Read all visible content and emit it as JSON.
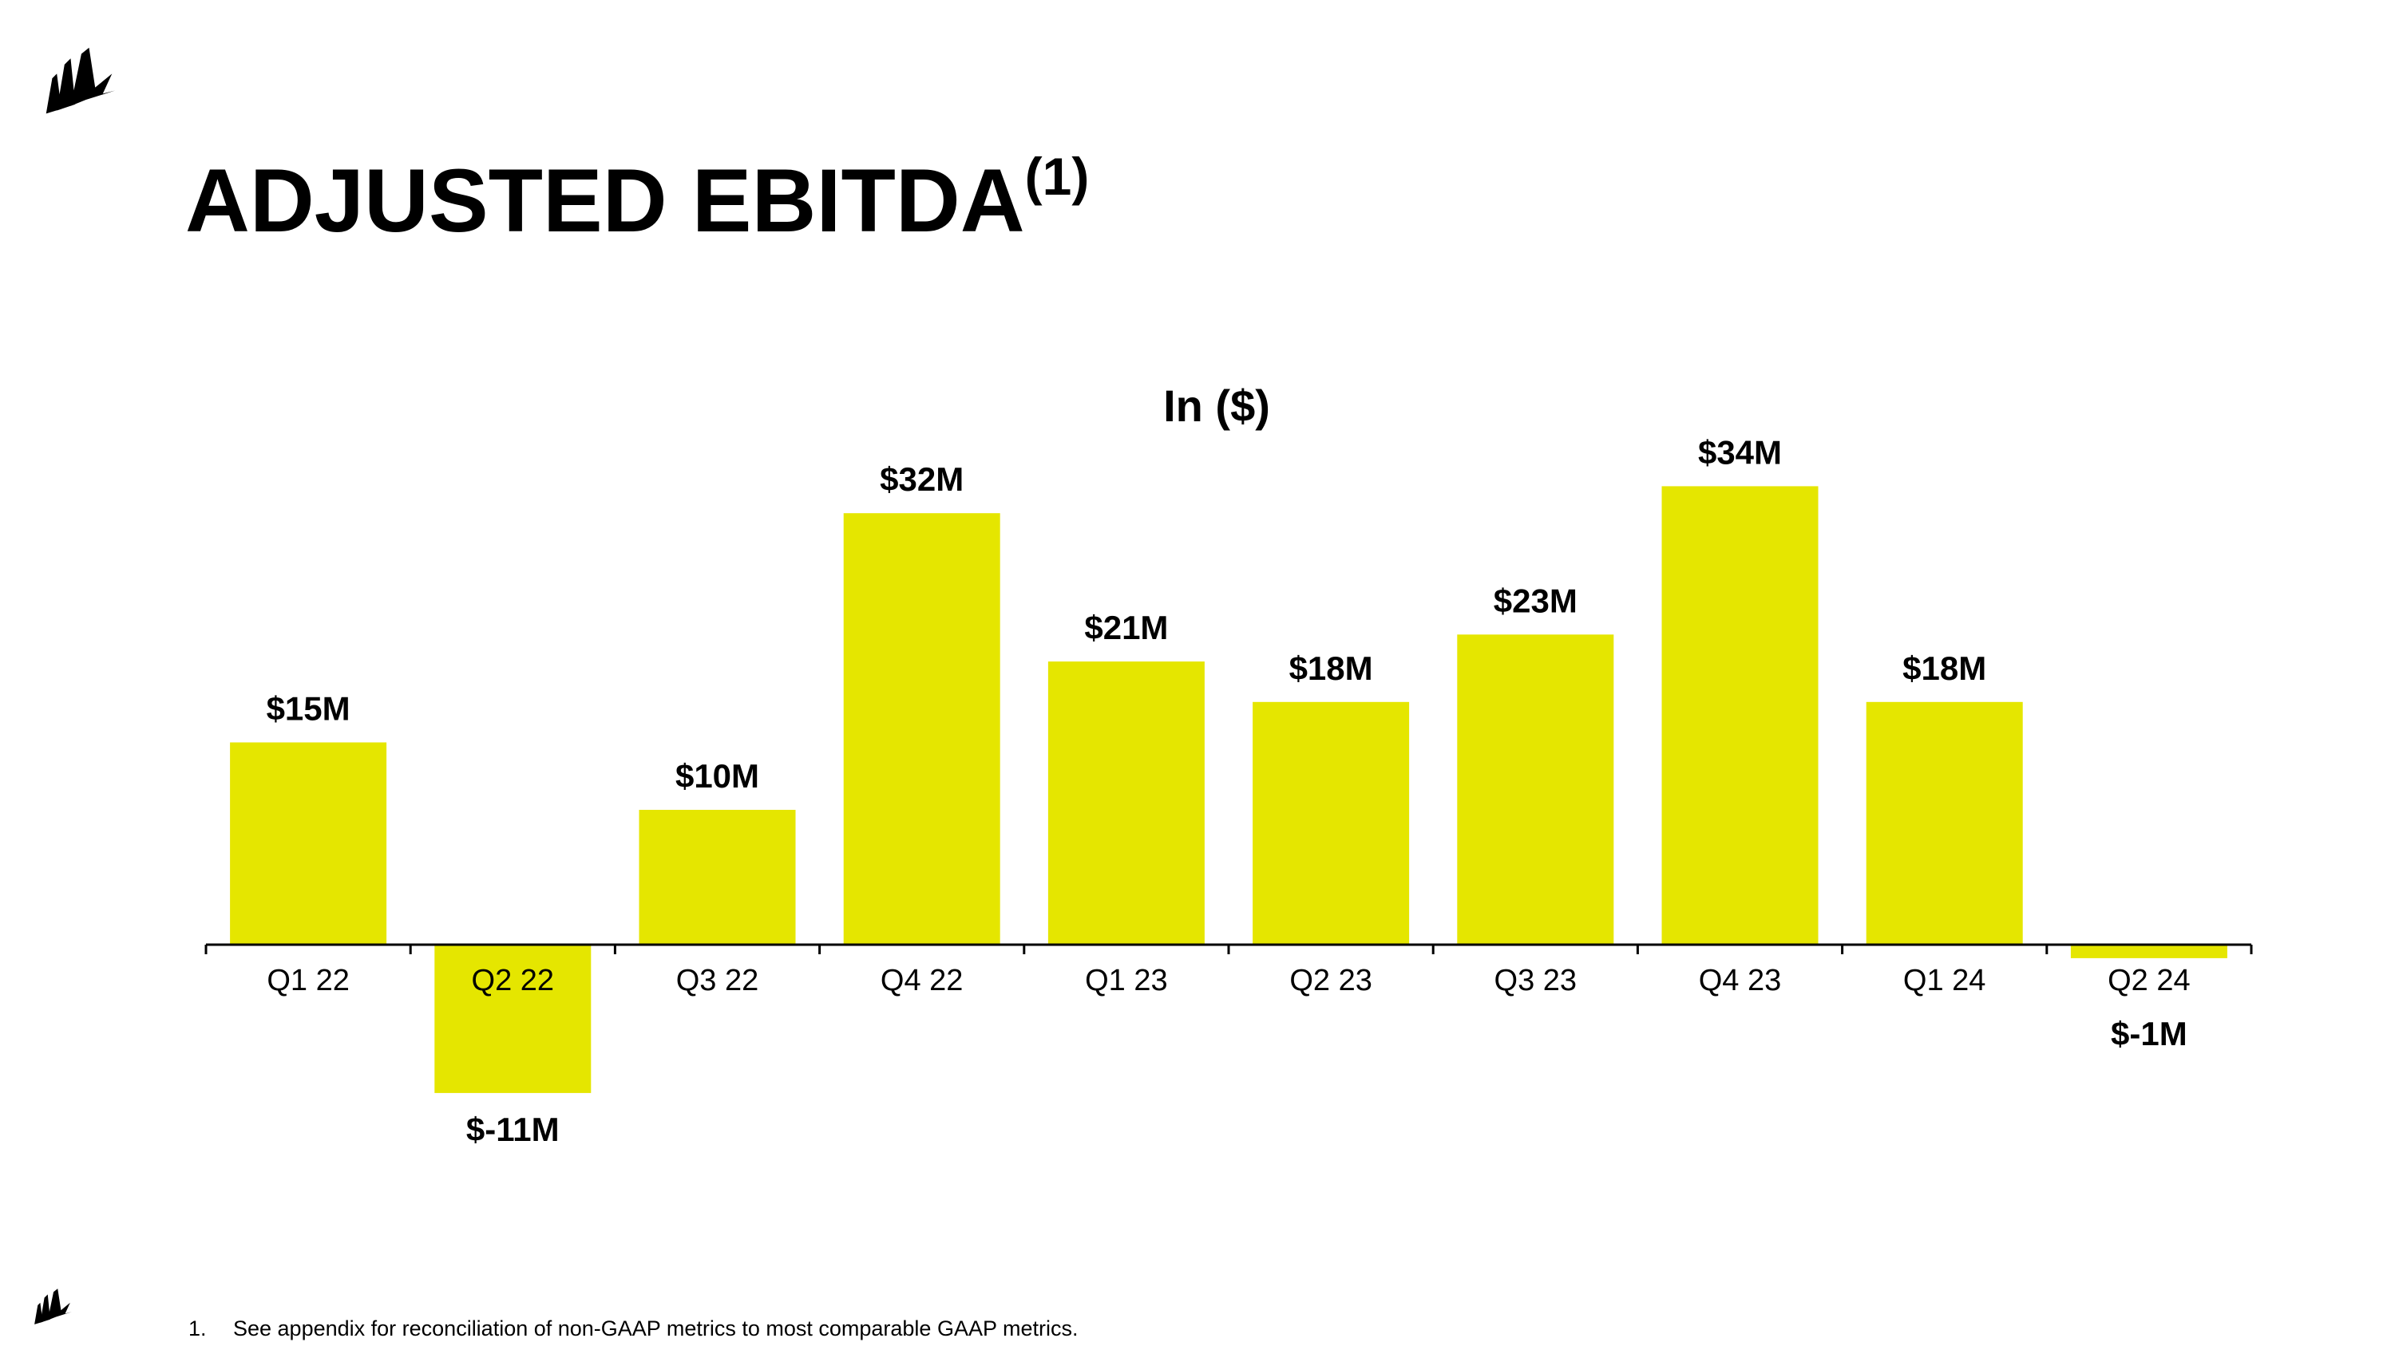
{
  "page": {
    "title": "ADJUSTED EBITDA",
    "title_superscript": "(1)",
    "footnote_number": "1.",
    "footnote_text": "See appendix for reconciliation of non-GAAP metrics to most comparable GAAP metrics.",
    "logo_icon": "sail-logo-icon"
  },
  "chart_data": {
    "type": "bar",
    "title": "In ($)",
    "categories": [
      "Q1 22",
      "Q2 22",
      "Q3 22",
      "Q4 22",
      "Q1 23",
      "Q2 23",
      "Q3 23",
      "Q4 23",
      "Q1 24",
      "Q2 24"
    ],
    "values": [
      15,
      -11,
      10,
      32,
      21,
      18,
      23,
      34,
      18,
      -1
    ],
    "data_labels": [
      "$15M",
      "$-11M",
      "$10M",
      "$32M",
      "$21M",
      "$18M",
      "$23M",
      "$34M",
      "$18M",
      "$-1M"
    ],
    "unit": "$M",
    "xlabel": "",
    "ylabel": "",
    "ylim": [
      -11,
      34
    ],
    "grid": false,
    "legend": "none",
    "bar_color": "#E5E600",
    "axis_color": "#000000"
  }
}
